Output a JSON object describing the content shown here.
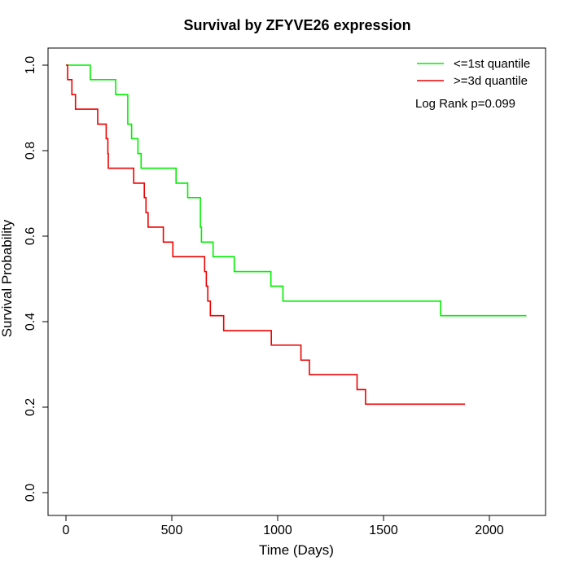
{
  "chart_data": {
    "type": "line",
    "title": "Survival by ZFYVE26 expression",
    "xlabel": "Time (Days)",
    "ylabel": "Survival Probability",
    "xlim": [
      0,
      2250
    ],
    "ylim": [
      0,
      1
    ],
    "xticks": [
      0,
      500,
      1000,
      1500,
      2000
    ],
    "yticks": [
      0.0,
      0.2,
      0.4,
      0.6,
      0.8,
      1.0
    ],
    "xtick_labels": [
      "0",
      "500",
      "1000",
      "1500",
      "2000"
    ],
    "ytick_labels": [
      "0.0",
      "0.2",
      "0.4",
      "0.6",
      "0.8",
      "1.0"
    ],
    "grid": false,
    "legend_position": "top-right",
    "annotation": "Log Rank p=0.099",
    "series": [
      {
        "name": "<=1st quantile",
        "color": "#00ee00",
        "step": "post",
        "points": [
          [
            0,
            1.0
          ],
          [
            115,
            0.966
          ],
          [
            235,
            0.931
          ],
          [
            292,
            0.862
          ],
          [
            310,
            0.828
          ],
          [
            340,
            0.793
          ],
          [
            355,
            0.759
          ],
          [
            520,
            0.724
          ],
          [
            575,
            0.69
          ],
          [
            635,
            0.621
          ],
          [
            640,
            0.586
          ],
          [
            695,
            0.552
          ],
          [
            795,
            0.517
          ],
          [
            968,
            0.483
          ],
          [
            1025,
            0.448
          ],
          [
            1770,
            0.414
          ],
          [
            2175,
            0.414
          ]
        ]
      },
      {
        "name": ">=3d quantile",
        "color": "#ee0000",
        "step": "post",
        "points": [
          [
            0,
            1.0
          ],
          [
            8,
            0.966
          ],
          [
            28,
            0.931
          ],
          [
            45,
            0.897
          ],
          [
            150,
            0.862
          ],
          [
            190,
            0.828
          ],
          [
            198,
            0.793
          ],
          [
            200,
            0.759
          ],
          [
            320,
            0.724
          ],
          [
            370,
            0.69
          ],
          [
            378,
            0.655
          ],
          [
            388,
            0.621
          ],
          [
            460,
            0.586
          ],
          [
            505,
            0.552
          ],
          [
            655,
            0.517
          ],
          [
            663,
            0.483
          ],
          [
            670,
            0.448
          ],
          [
            682,
            0.414
          ],
          [
            745,
            0.379
          ],
          [
            970,
            0.345
          ],
          [
            1110,
            0.31
          ],
          [
            1150,
            0.276
          ],
          [
            1375,
            0.241
          ],
          [
            1415,
            0.207
          ],
          [
            1885,
            0.207
          ]
        ]
      }
    ]
  }
}
